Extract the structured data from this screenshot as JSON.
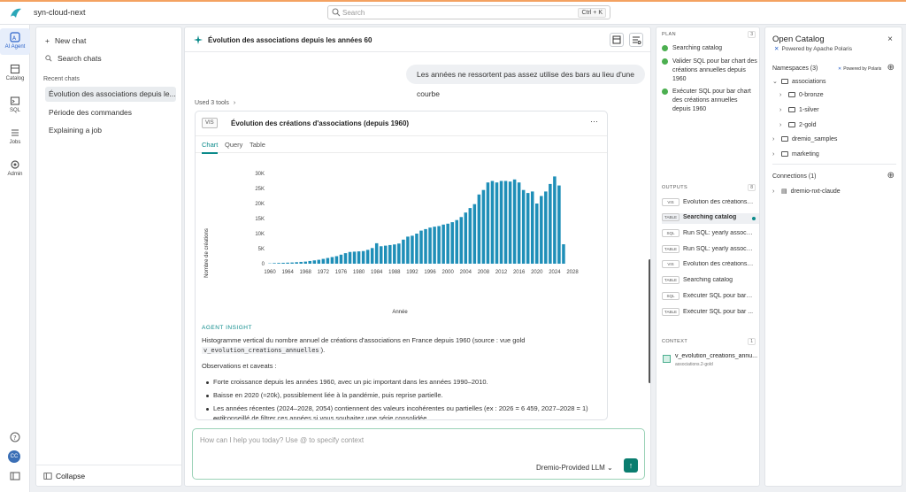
{
  "app": {
    "name": "syn-cloud-next"
  },
  "search": {
    "placeholder": "Search",
    "shortcut": "Ctrl + K"
  },
  "rail": {
    "items": [
      "AI Agent",
      "Catalog",
      "SQL",
      "Jobs",
      "Admin"
    ],
    "avatar": "CC"
  },
  "chats": {
    "new_chat": "New chat",
    "search_chats": "Search chats",
    "recent_label": "Recent chats",
    "recent": [
      "Évolution des associations depuis le...",
      "Période des commandes",
      "Explaining a job"
    ],
    "collapse": "Collapse"
  },
  "conversation": {
    "title": "Évolution des associations depuis les années 60",
    "user_message": "Les années ne ressortent pas assez utilise des bars au lieu d'une courbe",
    "tools_used": "Used 3 tools"
  },
  "visual": {
    "tag": "VIS",
    "title": "Évolution des créations d'associations (depuis 1960)",
    "more": "···",
    "tabs": [
      "Chart",
      "Query",
      "Table"
    ],
    "active_tab": "Chart"
  },
  "chart_data": {
    "type": "bar",
    "xlabel": "Année",
    "ylabel": "Nombre de créations",
    "x_ticks": [
      "1960",
      "1964",
      "1968",
      "1972",
      "1976",
      "1980",
      "1984",
      "1988",
      "1992",
      "1996",
      "2000",
      "2004",
      "2008",
      "2012",
      "2016",
      "2020",
      "2024",
      "2028"
    ],
    "y_ticks": [
      "0",
      "5K",
      "10K",
      "15K",
      "20K",
      "25K",
      "30K"
    ],
    "ylim": [
      0,
      30000
    ],
    "xlim": [
      1960,
      2028
    ],
    "color": "#1f8fb8",
    "x": [
      1960,
      1961,
      1962,
      1963,
      1964,
      1965,
      1966,
      1967,
      1968,
      1969,
      1970,
      1971,
      1972,
      1973,
      1974,
      1975,
      1976,
      1977,
      1978,
      1979,
      1980,
      1981,
      1982,
      1983,
      1984,
      1985,
      1986,
      1987,
      1988,
      1989,
      1990,
      1991,
      1992,
      1993,
      1994,
      1995,
      1996,
      1997,
      1998,
      1999,
      2000,
      2001,
      2002,
      2003,
      2004,
      2005,
      2006,
      2007,
      2008,
      2009,
      2010,
      2011,
      2012,
      2013,
      2014,
      2015,
      2016,
      2017,
      2018,
      2019,
      2020,
      2021,
      2022,
      2023,
      2024,
      2025,
      2026
    ],
    "values": [
      100,
      200,
      250,
      300,
      350,
      400,
      500,
      600,
      700,
      900,
      1100,
      1300,
      1600,
      1900,
      2200,
      2500,
      3000,
      3500,
      3900,
      4000,
      4100,
      4200,
      4600,
      5200,
      6800,
      5800,
      6000,
      6200,
      6400,
      6700,
      8000,
      9000,
      9300,
      10000,
      11000,
      11500,
      12000,
      12300,
      12500,
      13000,
      13300,
      13800,
      14500,
      15500,
      17000,
      18500,
      19800,
      23000,
      24500,
      27000,
      27500,
      27000,
      27500,
      27500,
      27300,
      28000,
      27000,
      24500,
      23500,
      24000,
      20000,
      22500,
      24000,
      26500,
      29000,
      26000,
      6459
    ]
  },
  "insight": {
    "heading": "AGENT INSIGHT",
    "intro": "Histogramme vertical du nombre annuel de créations d'associations en France depuis 1960 (source : vue gold",
    "view": "v_evolution_creations_annuelles",
    "intro_end": ").",
    "obs_title": "Observations et caveats :",
    "bullets": [
      "Forte croissance depuis les années 1960, avec un pic important dans les années 1990–2010.",
      "Baisse en 2020 (≈20k), possiblement liée à la pandémie, puis reprise partielle.",
      "Les années récentes (2024–2028, 2054) contiennent des valeurs incohérentes ou partielles (ex : 2026 = 6 459, 2027–2028 = 1) — il",
      "est conseillé de filtrer ces années si vous souhaitez une série consolidée."
    ]
  },
  "composer": {
    "placeholder": "How can I help you today? Use @ to specify context",
    "model": "Dremio-Provided LLM"
  },
  "plan": {
    "heading": "PLAN",
    "count": "3",
    "steps": [
      "Searching catalog",
      "Valider SQL pour bar chart des créations annuelles depuis 1960",
      "Exécuter SQL pour bar chart des créations annuelles depuis 1960"
    ]
  },
  "outputs": {
    "heading": "OUTPUTS",
    "count": "8",
    "items": [
      {
        "tag": "VIS",
        "label": "Évolution des créations d..."
      },
      {
        "tag": "TABLE",
        "label": "Searching catalog"
      },
      {
        "tag": "SQL",
        "label": "Run SQL: yearly associat..."
      },
      {
        "tag": "TABLE",
        "label": "Run SQL: yearly associat..."
      },
      {
        "tag": "VIS",
        "label": "Évolution des créations d..."
      },
      {
        "tag": "TABLE",
        "label": "Searching catalog"
      },
      {
        "tag": "SQL",
        "label": "Exécuter SQL pour bar c..."
      },
      {
        "tag": "TABLE",
        "label": "Exécuter SQL pour bar ..."
      }
    ]
  },
  "context": {
    "heading": "CONTEXT",
    "count": "1",
    "name": "v_evolution_creations_annu...",
    "path": "associations.2-gold"
  },
  "catalog": {
    "title": "Open Catalog",
    "powered": "Powered by Apache Polaris",
    "namespaces": "Namespaces (3)",
    "powered_small": "Powered by Polaris",
    "tree": [
      "associations",
      "0-bronze",
      "1-silver",
      "2-gold",
      "dremio_samples",
      "marketing"
    ],
    "connections": "Connections (1)",
    "connection": "dremio-nxt-claude"
  }
}
